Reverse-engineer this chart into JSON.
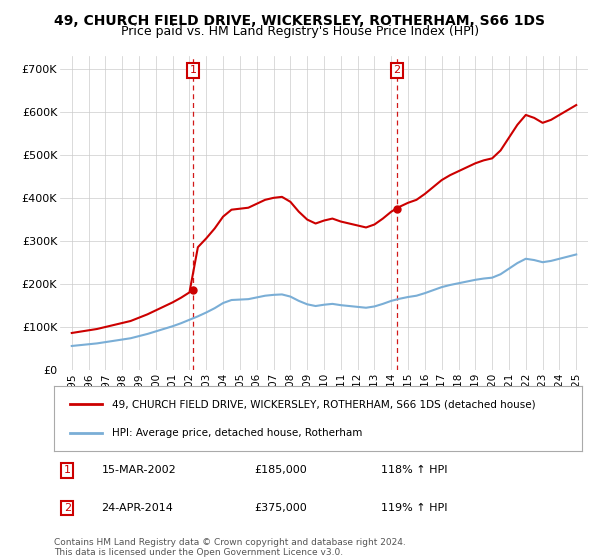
{
  "title": "49, CHURCH FIELD DRIVE, WICKERSLEY, ROTHERHAM, S66 1DS",
  "subtitle": "Price paid vs. HM Land Registry's House Price Index (HPI)",
  "title_fontsize": 10,
  "subtitle_fontsize": 9,
  "red_label": "49, CHURCH FIELD DRIVE, WICKERSLEY, ROTHERHAM, S66 1DS (detached house)",
  "blue_label": "HPI: Average price, detached house, Rotherham",
  "footnote": "Contains HM Land Registry data © Crown copyright and database right 2024.\nThis data is licensed under the Open Government Licence v3.0.",
  "point1_date": "15-MAR-2002",
  "point1_price": "£185,000",
  "point1_hpi": "118% ↑ HPI",
  "point2_date": "24-APR-2014",
  "point2_price": "£375,000",
  "point2_hpi": "119% ↑ HPI",
  "ylim": [
    0,
    730000
  ],
  "yticks": [
    0,
    100000,
    200000,
    300000,
    400000,
    500000,
    600000,
    700000
  ],
  "xlim_left": 1994.3,
  "xlim_right": 2025.7,
  "background_color": "#ffffff",
  "grid_color": "#cccccc",
  "red_color": "#cc0000",
  "blue_color": "#7aaed6",
  "vline_color": "#cc0000",
  "box_color": "#cc0000",
  "sale1_x": 2002.21,
  "sale1_y": 185000,
  "sale2_x": 2014.32,
  "sale2_y": 375000,
  "hpi_x": [
    1995.0,
    1995.5,
    1996.0,
    1996.5,
    1997.0,
    1997.5,
    1998.0,
    1998.5,
    1999.0,
    1999.5,
    2000.0,
    2000.5,
    2001.0,
    2001.5,
    2002.0,
    2002.5,
    2003.0,
    2003.5,
    2004.0,
    2004.5,
    2005.0,
    2005.5,
    2006.0,
    2006.5,
    2007.0,
    2007.5,
    2008.0,
    2008.5,
    2009.0,
    2009.5,
    2010.0,
    2010.5,
    2011.0,
    2011.5,
    2012.0,
    2012.5,
    2013.0,
    2013.5,
    2014.0,
    2014.5,
    2015.0,
    2015.5,
    2016.0,
    2016.5,
    2017.0,
    2017.5,
    2018.0,
    2018.5,
    2019.0,
    2019.5,
    2020.0,
    2020.5,
    2021.0,
    2021.5,
    2022.0,
    2022.5,
    2023.0,
    2023.5,
    2024.0,
    2024.5,
    2025.0
  ],
  "hpi_y": [
    55000,
    57000,
    59000,
    61000,
    64000,
    67000,
    70000,
    73000,
    78000,
    83000,
    89000,
    95000,
    101000,
    108000,
    116000,
    124000,
    133000,
    143000,
    155000,
    162000,
    163000,
    164000,
    168000,
    172000,
    174000,
    175000,
    170000,
    160000,
    152000,
    148000,
    151000,
    153000,
    150000,
    148000,
    146000,
    144000,
    147000,
    153000,
    160000,
    165000,
    169000,
    172000,
    178000,
    185000,
    192000,
    197000,
    201000,
    205000,
    209000,
    212000,
    214000,
    222000,
    235000,
    248000,
    258000,
    255000,
    250000,
    253000,
    258000,
    263000,
    268000
  ]
}
